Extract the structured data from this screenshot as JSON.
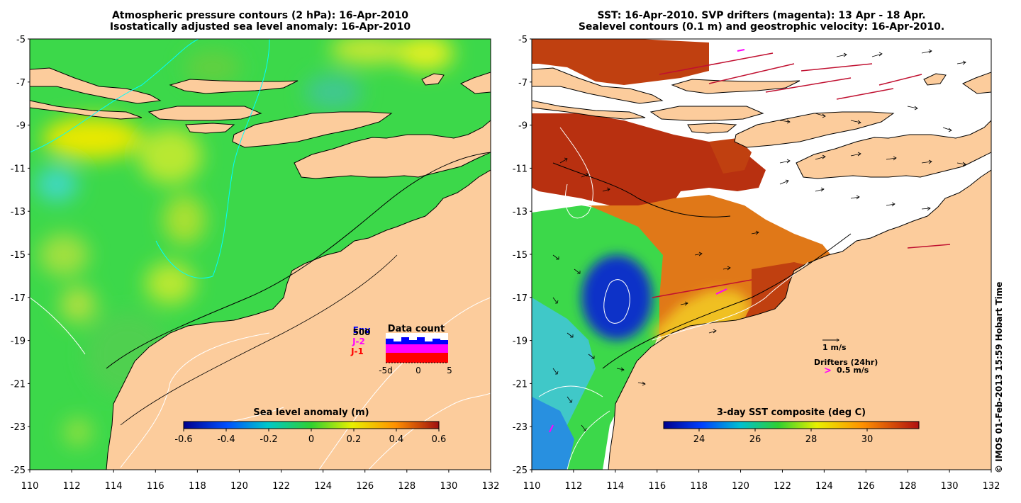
{
  "left_panel": {
    "title_line1": "Atmospheric pressure contours (2 hPa): 16-Apr-2010",
    "title_line2": "Isostatically adjusted sea level anomaly: 16-Apr-2010",
    "colorbar": {
      "label": "Sea level anomaly (m)",
      "ticks": [
        "-0.6",
        "-0.4",
        "-0.2",
        "0",
        "0.2",
        "0.4",
        "0.6"
      ]
    },
    "inset": {
      "title": "Data count",
      "legend": [
        "Env",
        "500",
        "J-2",
        "J-1"
      ],
      "x_ticks": [
        "-5d",
        "0",
        "5"
      ],
      "colors": {
        "env": "#0000ff",
        "j2": "#ff00ff",
        "j1": "#ff0000"
      }
    }
  },
  "right_panel": {
    "title_line1": "SST: 16-Apr-2010. SVP drifters (magenta): 13 Apr - 18 Apr.",
    "title_line2": "Sealevel contours (0.1 m) and geostrophic velocity: 16-Apr-2010.",
    "colorbar": {
      "label": "3-day SST composite (deg C)",
      "ticks": [
        "24",
        "26",
        "28",
        "30"
      ]
    },
    "scale_label": "1 m/s",
    "drifters_label": "Drifters (24hr)",
    "drifter_speed_label": "0.5 m/s"
  },
  "axes": {
    "x_ticks": [
      "110",
      "112",
      "114",
      "116",
      "118",
      "120",
      "122",
      "124",
      "126",
      "128",
      "130",
      "132"
    ],
    "y_ticks": [
      "-5",
      "-7",
      "-9",
      "-11",
      "-13",
      "-15",
      "-17",
      "-19",
      "-21",
      "-23",
      "-25"
    ]
  },
  "credit": "© IMOS 01-Feb-2013 15:59 Hobart Time",
  "colors": {
    "land": "#fccc9c",
    "cloud": "#ffffff",
    "ocean_green": "#3cd84a"
  }
}
